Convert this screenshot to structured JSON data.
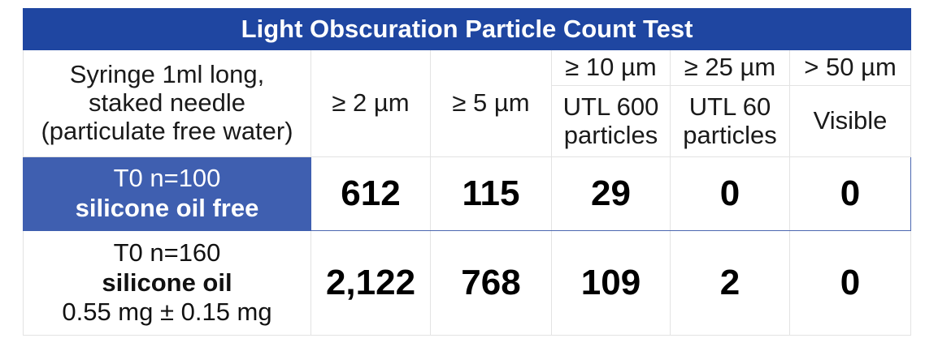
{
  "table": {
    "title": "Light Obscuration Particle Count Test",
    "header": {
      "sample_desc": [
        "Syringe 1ml long,",
        "staked needle",
        "(particulate free water)"
      ],
      "col_2um": "≥ 2 µm",
      "col_5um": "≥ 5 µm",
      "col_10um": "≥ 10 µm",
      "col_25um": "≥ 25 µm",
      "col_50um": "> 50 µm",
      "limit_10um": [
        "UTL 600",
        "particles"
      ],
      "limit_25um": [
        "UTL 60",
        "particles"
      ],
      "limit_50um": "Visible"
    },
    "rows": [
      {
        "label_top": "T0 n=100",
        "label_bold": "silicone oil free",
        "values": [
          "612",
          "115",
          "29",
          "0",
          "0"
        ]
      },
      {
        "label_top": "T0 n=160",
        "label_bold": "silicone oil",
        "label_sub": "0.55 mg ± 0.15 mg",
        "values": [
          "2,122",
          "768",
          "109",
          "2",
          "0"
        ]
      }
    ],
    "colors": {
      "title_bg": "#1f46a1",
      "highlight_bg": "#3f5fb0",
      "border": "#e3e3e3"
    }
  }
}
